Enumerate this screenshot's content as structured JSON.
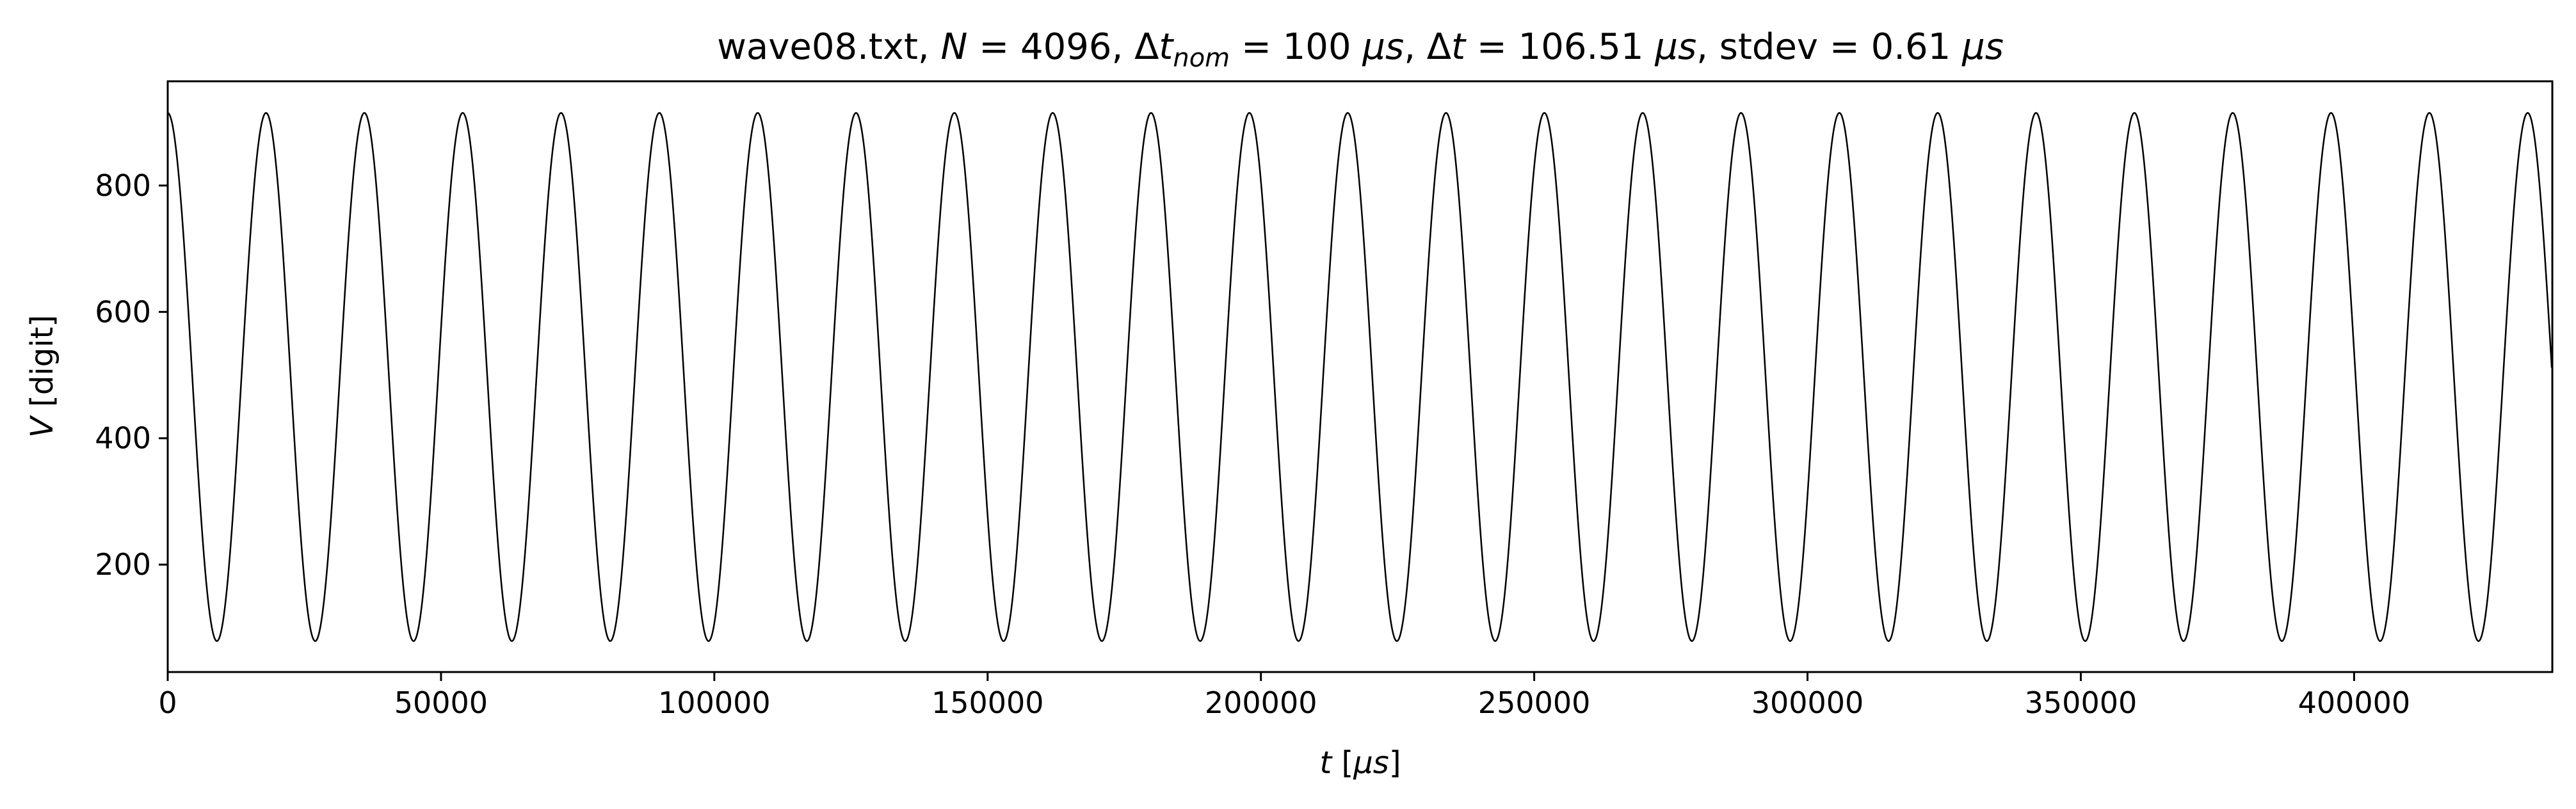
{
  "chart_data": {
    "type": "line",
    "title": {
      "prefix": "wave08.txt, ",
      "n_symbol": "N",
      "n_text": " = 4096, Δ",
      "dtnom_symbol": "t",
      "dtnom_sub": "nom",
      "dtnom_text": " = 100 ",
      "mu1": "μs",
      "dt_text": ", Δ",
      "dt_symbol": "t",
      "dt_value": " = 106.51 ",
      "mu2": "μs",
      "stdev_text": ", stdev = 0.61 ",
      "mu3": "μs"
    },
    "xlabel": {
      "symbol": "t",
      "bracket_open": " [",
      "unit": "μs",
      "bracket_close": "]"
    },
    "ylabel": {
      "symbol": "V",
      "rest": " [digit]"
    },
    "xlim": [
      0,
      436263
    ],
    "ylim": [
      30,
      965
    ],
    "xticks": [
      "0",
      "50000",
      "100000",
      "150000",
      "200000",
      "250000",
      "300000",
      "350000",
      "400000"
    ],
    "xtick_values": [
      0,
      50000,
      100000,
      150000,
      200000,
      250000,
      300000,
      350000,
      400000
    ],
    "yticks": [
      "200",
      "400",
      "600",
      "800"
    ],
    "ytick_values": [
      200,
      400,
      600,
      800
    ],
    "series": [
      {
        "model": "sine",
        "offset": 497,
        "amplitude": 418,
        "period": 17990,
        "phase_x_of_first_max": 0,
        "n_samples": 4096,
        "dt": 106.51,
        "line_color": "#000000"
      }
    ],
    "grid": false,
    "legend": "none"
  }
}
